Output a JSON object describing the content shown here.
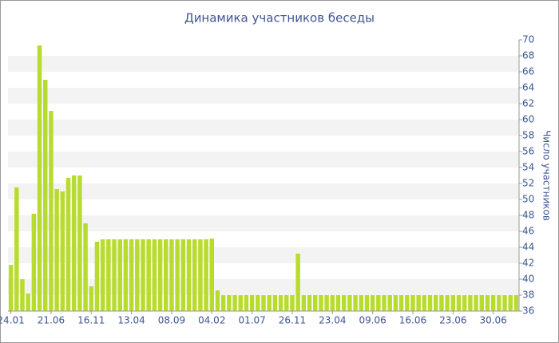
{
  "chart_data": {
    "type": "bar",
    "title": "Динамика участников беседы",
    "y_label": "Число участников",
    "categories": [
      "24.01",
      null,
      null,
      null,
      null,
      null,
      null,
      "21.06",
      null,
      null,
      null,
      null,
      null,
      null,
      "16.11",
      null,
      null,
      null,
      null,
      null,
      null,
      "13.04",
      null,
      null,
      null,
      null,
      null,
      null,
      "08.09",
      null,
      null,
      null,
      null,
      null,
      null,
      "04.02",
      null,
      null,
      null,
      null,
      null,
      null,
      "01.07",
      null,
      null,
      null,
      null,
      null,
      null,
      "26.11",
      null,
      null,
      null,
      null,
      null,
      null,
      "23.04",
      null,
      null,
      null,
      null,
      null,
      null,
      "09.06",
      null,
      null,
      null,
      null,
      null,
      null,
      "16.06",
      null,
      null,
      null,
      null,
      null,
      null,
      "23.06",
      null,
      null,
      null,
      null,
      null,
      null,
      "30.06",
      null,
      null,
      null,
      null
    ],
    "values": [
      41.8,
      51.5,
      40,
      38.2,
      48.2,
      69.3,
      65,
      61.1,
      51.3,
      51,
      52.7,
      53,
      53,
      47,
      39.1,
      44.7,
      45,
      45,
      45,
      45,
      45,
      45,
      45,
      45,
      45,
      45,
      45,
      45,
      45,
      45,
      45,
      45,
      45,
      45,
      45,
      45.1,
      38.6,
      38,
      38,
      38,
      38,
      38,
      38,
      38,
      38,
      38,
      38,
      38,
      38,
      38,
      43.2,
      38,
      38,
      38,
      38,
      38,
      38,
      38,
      38,
      38,
      38,
      38,
      38,
      38,
      38,
      38,
      38,
      38,
      38,
      38,
      38,
      38,
      38,
      38,
      38,
      38,
      38,
      38,
      38,
      38,
      38,
      38,
      38,
      38,
      38,
      38,
      38,
      38,
      38
    ],
    "color": "#b8dc2e",
    "ylim": [
      36,
      70
    ],
    "yticks": [
      36,
      38,
      40,
      42,
      44,
      46,
      48,
      50,
      52,
      54,
      56,
      58,
      60,
      62,
      64,
      66,
      68,
      70
    ],
    "grid": "bands",
    "y_axis_side": "right"
  }
}
